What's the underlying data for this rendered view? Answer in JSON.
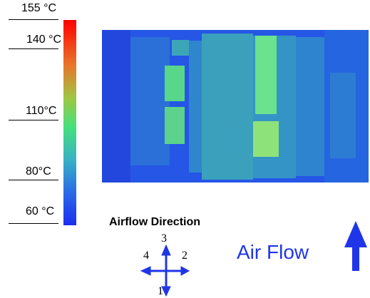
{
  "colorbar": {
    "ticks": [
      "155 °C",
      "140 °C",
      "110°C",
      "80°C",
      "60 °C"
    ],
    "colors": [
      "#ff0000",
      "#e8762a",
      "#9fc642",
      "#45e07b",
      "#38b2c4",
      "#2a6fe4",
      "#1c2df0"
    ]
  },
  "airflow_direction": {
    "title": "Airflow Direction",
    "numbers": [
      "3",
      "4",
      "2",
      "1"
    ]
  },
  "air_flow": {
    "label": "Air Flow",
    "arrow_color": "#1f36e8"
  }
}
